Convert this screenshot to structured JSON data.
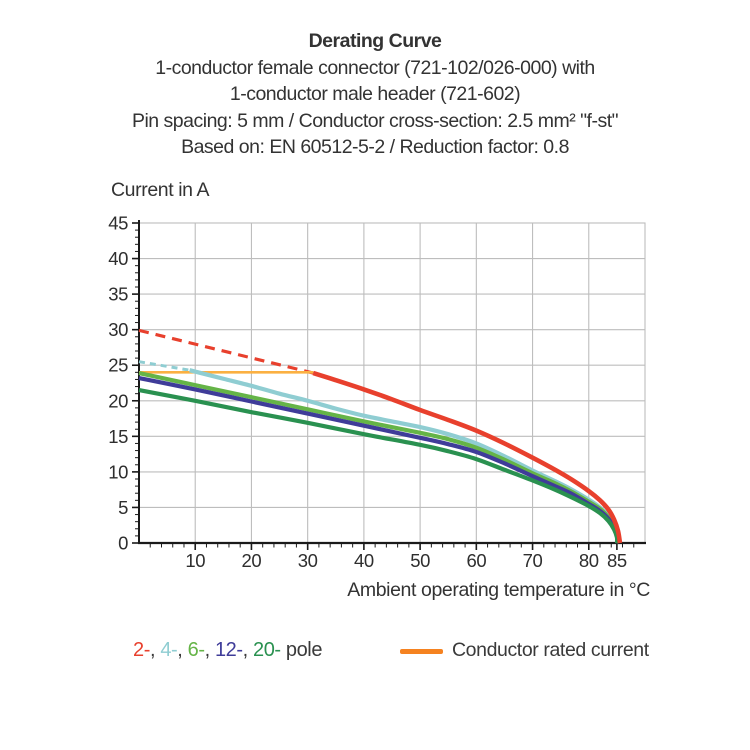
{
  "chart_data": {
    "type": "line",
    "title": "Derating Curve",
    "subtitle_lines": [
      "1-conductor female connector (721-102/026-000) with",
      "1-conductor male header (721-602)",
      "Pin spacing: 5 mm / Conductor cross-section: 2.5 mm² \"f-st\"",
      "Based on: EN 60512-5-2 / Reduction factor: 0.8"
    ],
    "ylabel": "Current in A",
    "xlabel": "Ambient operating temperature in °C",
    "xlim": [
      0,
      90
    ],
    "ylim": [
      0,
      45
    ],
    "x_major_ticks": [
      10,
      20,
      30,
      40,
      50,
      60,
      70,
      80,
      85
    ],
    "x_gridlines": [
      10,
      20,
      30,
      40,
      50,
      60,
      70,
      80
    ],
    "x_minor_step": 2,
    "y_major_ticks": [
      0,
      5,
      10,
      15,
      20,
      25,
      30,
      35,
      40,
      45
    ],
    "y_minor_step": 1,
    "grid": true,
    "grid_color": "#bdbdbd",
    "axis_color": "#1a1a1a",
    "series": [
      {
        "id": "pole-2-dashed",
        "name": "2-pole rated current (dashed)",
        "color": "#E8402D",
        "width": 3.2,
        "dash": "10 7",
        "points": [
          [
            0,
            29.9
          ],
          [
            31,
            23.9
          ]
        ]
      },
      {
        "id": "pole-4-dashed",
        "name": "4-pole rated current (dashed)",
        "color": "#8FCDD2",
        "width": 3.0,
        "dash": "6 5",
        "points": [
          [
            0,
            25.5
          ],
          [
            9,
            24.3
          ]
        ]
      },
      {
        "id": "rated-current",
        "name": "Conductor rated current",
        "color": "#FBB042",
        "width": 2.6,
        "points": [
          [
            0,
            24
          ],
          [
            31,
            24
          ]
        ]
      },
      {
        "id": "pole-4",
        "name": "4-pole",
        "color": "#8FCDD2",
        "width": 4.2,
        "smooth": true,
        "points": [
          [
            9,
            24.3
          ],
          [
            15,
            23.1
          ],
          [
            20,
            22.1
          ],
          [
            25,
            21.0
          ],
          [
            30,
            20.0
          ],
          [
            35,
            18.9
          ],
          [
            40,
            17.9
          ],
          [
            45,
            17.1
          ],
          [
            50,
            16.3
          ],
          [
            55,
            15.3
          ],
          [
            60,
            14.0
          ],
          [
            65,
            12.2
          ],
          [
            70,
            10.2
          ],
          [
            74,
            8.7
          ],
          [
            77,
            7.5
          ],
          [
            80,
            6.1
          ],
          [
            82,
            5.0
          ],
          [
            83.5,
            3.8
          ],
          [
            84.5,
            2.5
          ],
          [
            85.1,
            1.2
          ],
          [
            85.35,
            0
          ]
        ]
      },
      {
        "id": "pole-6",
        "name": "6-pole",
        "color": "#65B447",
        "width": 4.2,
        "smooth": true,
        "points": [
          [
            0,
            23.9
          ],
          [
            10,
            22.2
          ],
          [
            20,
            20.5
          ],
          [
            30,
            18.8
          ],
          [
            40,
            17.1
          ],
          [
            50,
            15.5
          ],
          [
            55,
            14.6
          ],
          [
            60,
            13.4
          ],
          [
            65,
            11.7
          ],
          [
            70,
            9.8
          ],
          [
            74,
            8.4
          ],
          [
            77,
            7.2
          ],
          [
            80,
            5.8
          ],
          [
            82,
            4.8
          ],
          [
            83.5,
            3.6
          ],
          [
            84.5,
            2.3
          ],
          [
            85,
            1.1
          ],
          [
            85.2,
            0
          ]
        ]
      },
      {
        "id": "pole-12",
        "name": "12-pole",
        "color": "#3F3C99",
        "width": 4.2,
        "smooth": true,
        "points": [
          [
            0,
            23.2
          ],
          [
            10,
            21.6
          ],
          [
            20,
            19.9
          ],
          [
            30,
            18.2
          ],
          [
            40,
            16.5
          ],
          [
            50,
            14.8
          ],
          [
            55,
            13.9
          ],
          [
            60,
            12.8
          ],
          [
            65,
            11.2
          ],
          [
            70,
            9.4
          ],
          [
            74,
            8.0
          ],
          [
            77,
            6.9
          ],
          [
            80,
            5.5
          ],
          [
            82,
            4.5
          ],
          [
            83.5,
            3.4
          ],
          [
            84.5,
            2.1
          ],
          [
            85,
            1.0
          ],
          [
            85.1,
            0
          ]
        ]
      },
      {
        "id": "pole-20",
        "name": "20-pole",
        "color": "#2A9150",
        "width": 4.2,
        "smooth": true,
        "points": [
          [
            0,
            21.5
          ],
          [
            10,
            20.0
          ],
          [
            20,
            18.4
          ],
          [
            30,
            16.9
          ],
          [
            40,
            15.3
          ],
          [
            50,
            13.8
          ],
          [
            55,
            12.9
          ],
          [
            60,
            11.8
          ],
          [
            65,
            10.3
          ],
          [
            70,
            8.8
          ],
          [
            74,
            7.5
          ],
          [
            77,
            6.4
          ],
          [
            80,
            5.2
          ],
          [
            82,
            4.2
          ],
          [
            83.5,
            3.1
          ],
          [
            84.5,
            1.9
          ],
          [
            85,
            0.8
          ],
          [
            85.05,
            0
          ]
        ]
      },
      {
        "id": "pole-2",
        "name": "2-pole",
        "color": "#E8402D",
        "width": 4.6,
        "smooth": true,
        "points": [
          [
            31,
            23.9
          ],
          [
            35,
            22.9
          ],
          [
            40,
            21.6
          ],
          [
            45,
            20.2
          ],
          [
            50,
            18.7
          ],
          [
            55,
            17.3
          ],
          [
            60,
            15.8
          ],
          [
            65,
            14.0
          ],
          [
            70,
            12.0
          ],
          [
            74,
            10.3
          ],
          [
            77,
            8.9
          ],
          [
            80,
            7.3
          ],
          [
            82,
            6.0
          ],
          [
            83.5,
            4.7
          ],
          [
            84.5,
            3.3
          ],
          [
            85.2,
            1.7
          ],
          [
            85.55,
            0
          ]
        ]
      }
    ],
    "legend": {
      "pole_items": [
        {
          "text": "2-",
          "color": "#E8402D"
        },
        {
          "text": "4-",
          "color": "#8FCDD2"
        },
        {
          "text": "6-",
          "color": "#65B447"
        },
        {
          "text": "12-",
          "color": "#3F3C99"
        },
        {
          "text": "20-",
          "color": "#2A9150"
        }
      ],
      "separator": ", ",
      "suffix": " pole",
      "rated_label": "Conductor rated current",
      "rated_swatch_color": "#F58220"
    }
  }
}
